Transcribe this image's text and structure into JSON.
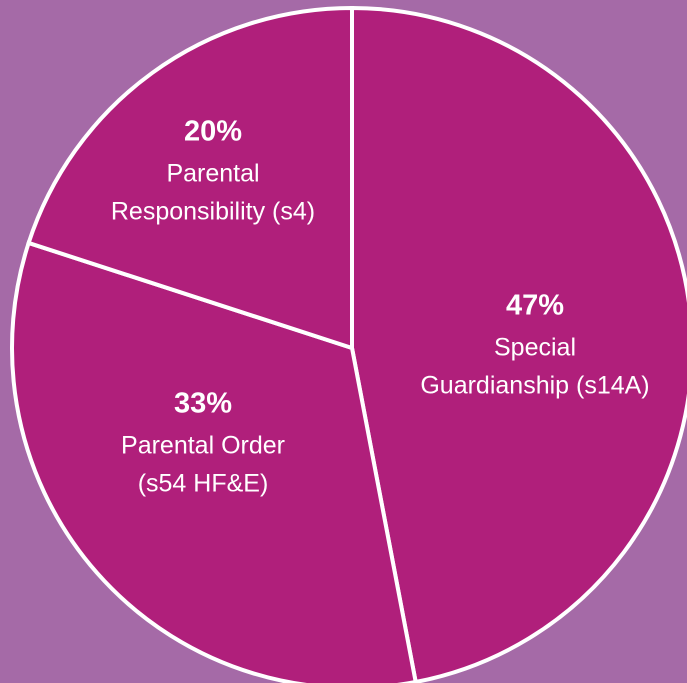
{
  "chart_data": {
    "type": "pie",
    "categories": [
      [
        "Special",
        "Guardianship (s14A)"
      ],
      [
        "Parental Order",
        "(s54 HF&E)"
      ],
      [
        "Parental",
        "Responsibility (s4)"
      ]
    ],
    "values": [
      47,
      33,
      20
    ],
    "value_labels": [
      "47%",
      "33%",
      "20%"
    ],
    "color": "#b01f7b",
    "background": "#a56aa7"
  }
}
